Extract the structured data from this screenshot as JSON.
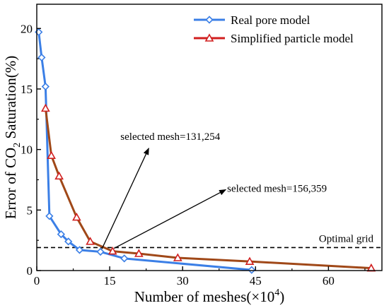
{
  "chart_data": {
    "type": "line",
    "xlabel": "Number of meshes(×10",
    "xlabel_sup": "4",
    "xlabel_end": ")",
    "ylabel_pre": "Error of CO",
    "ylabel_sub": "2",
    "ylabel_post": " Saturation(%)",
    "xlim": [
      0,
      71
    ],
    "ylim": [
      0,
      22
    ],
    "xticks": [
      0,
      15,
      30,
      45,
      60
    ],
    "yticks": [
      0,
      5,
      10,
      15,
      20
    ],
    "legend_position": "top-right",
    "series": [
      {
        "name": "Real pore model",
        "color": "#3b7fe6",
        "marker": "diamond",
        "x": [
          0.4,
          1.0,
          1.8,
          2.6,
          5.0,
          6.5,
          8.8,
          13.1,
          18.0,
          44.2
        ],
        "y": [
          19.7,
          17.6,
          15.2,
          4.5,
          3.0,
          2.4,
          1.7,
          1.55,
          1.0,
          0.05
        ]
      },
      {
        "name": "Simplified particle model",
        "color": "#d11f1f",
        "line_color": "#a04818",
        "marker": "triangle",
        "x": [
          1.8,
          3.0,
          4.6,
          8.2,
          11.0,
          15.6,
          21.0,
          29.0,
          43.8,
          68.8
        ],
        "y": [
          13.4,
          9.5,
          7.8,
          4.4,
          2.4,
          1.6,
          1.4,
          1.05,
          0.75,
          0.2
        ]
      }
    ],
    "reference_line": {
      "y": 1.9,
      "label": "Optimal grid"
    },
    "annotations": [
      {
        "text": "selected mesh=131,254",
        "point": [
          13.1,
          1.55
        ],
        "text_at": [
          17.5,
          10.8
        ]
      },
      {
        "text": "selected mesh=156,359",
        "point": [
          15.6,
          1.6
        ],
        "text_at": [
          38.0,
          6.8
        ]
      }
    ]
  }
}
